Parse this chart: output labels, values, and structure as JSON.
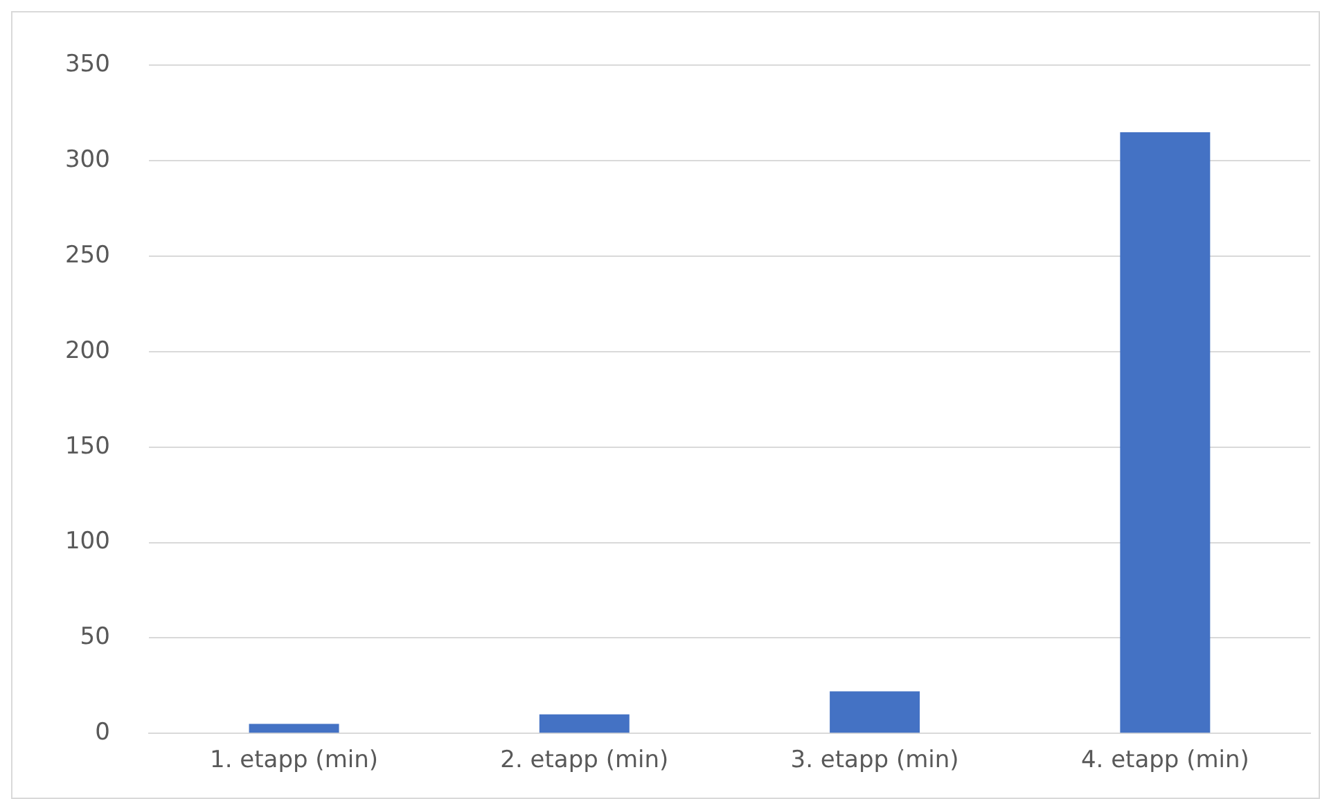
{
  "chart_data": {
    "type": "bar",
    "categories": [
      "1. etapp (min)",
      "2. etapp (min)",
      "3. etapp (min)",
      "4. etapp (min)"
    ],
    "values": [
      5,
      10,
      22,
      315
    ],
    "color": "#4472c4",
    "ylim": [
      0,
      350
    ],
    "yticks": [
      0,
      50,
      100,
      150,
      200,
      250,
      300,
      350
    ],
    "grid": "y",
    "legend": false
  }
}
